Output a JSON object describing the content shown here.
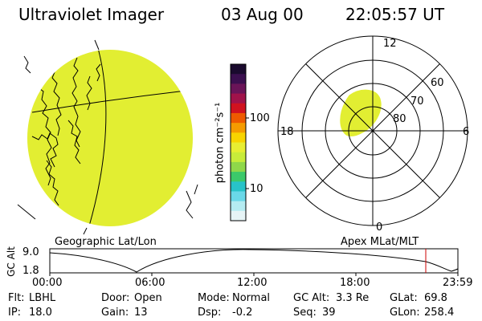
{
  "header": {
    "title": "Ultraviolet Imager",
    "date": "03 Aug 00",
    "time": "22:05:57 UT"
  },
  "colorbar": {
    "label": "photon cm⁻²s⁻¹",
    "tick_labels": [
      "100",
      "10"
    ],
    "colors": [
      "#1a0a2e",
      "#3b0f4f",
      "#6a1458",
      "#a0124a",
      "#d0121f",
      "#ee5a00",
      "#f59b00",
      "#f8d400",
      "#e8ee32",
      "#c8ec3a",
      "#8fd84a",
      "#3cc96a",
      "#28c3c8",
      "#6ad8e8",
      "#b5ecf2",
      "#e6f4f6"
    ]
  },
  "left_map": {
    "label": "Geographic Lat/Lon",
    "fill_color": "#e2ee32"
  },
  "polar_plot": {
    "label": "Apex MLat/MLT",
    "lat_labels": [
      "60",
      "70",
      "80"
    ],
    "mlt_labels": {
      "top": "12",
      "left": "18",
      "right": "6",
      "bottom": "0"
    },
    "fill_color": "#e2ee32"
  },
  "altitude_plot": {
    "y_label": "GC Alt",
    "y_ticks": [
      "9.0",
      "1.8"
    ],
    "x_ticks": [
      "00:00",
      "06:00",
      "12:00",
      "18:00",
      "23:59"
    ],
    "marker_color": "#cc0000"
  },
  "info": {
    "flt": {
      "label": "Flt:",
      "value": "LBHL"
    },
    "ip": {
      "label": "IP:",
      "value": "18.0"
    },
    "door": {
      "label": "Door:",
      "value": "Open"
    },
    "gain": {
      "label": "Gain:",
      "value": "13"
    },
    "mode": {
      "label": "Mode:",
      "value": "Normal"
    },
    "dsp": {
      "label": "Dsp:",
      "value": "-0.2"
    },
    "gc_alt": {
      "label": "GC Alt:",
      "value": "3.3 Re"
    },
    "seq": {
      "label": "Seq:",
      "value": "39"
    },
    "glat": {
      "label": "GLat:",
      "value": "69.8"
    },
    "glon": {
      "label": "GLon:",
      "value": "258.4"
    }
  }
}
